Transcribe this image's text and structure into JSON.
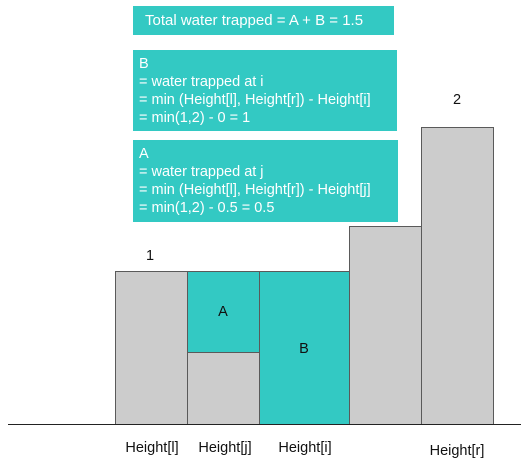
{
  "total_box": {
    "text": "Total water trapped = A + B = 1.5"
  },
  "b_box": {
    "lines": [
      "B",
      "= water trapped at i",
      "= min (Height[l], Height[r]) - Height[i]",
      "= min(1,2) - 0 = 1"
    ]
  },
  "a_box": {
    "lines": [
      "A",
      "= water trapped at j",
      "= min (Height[l], Height[r]) - Height[j]",
      "= min(1,2) - 0.5 = 0.5"
    ]
  },
  "bar_values": {
    "left_height": "1",
    "right_height": "2"
  },
  "regions": {
    "a": "A",
    "b": "B"
  },
  "axis_labels": {
    "l": "Height[l]",
    "j": "Height[j]",
    "i": "Height[i]",
    "r": "Height[r]"
  },
  "colors": {
    "water": "#33c9c3",
    "bar": "#cccccc"
  }
}
